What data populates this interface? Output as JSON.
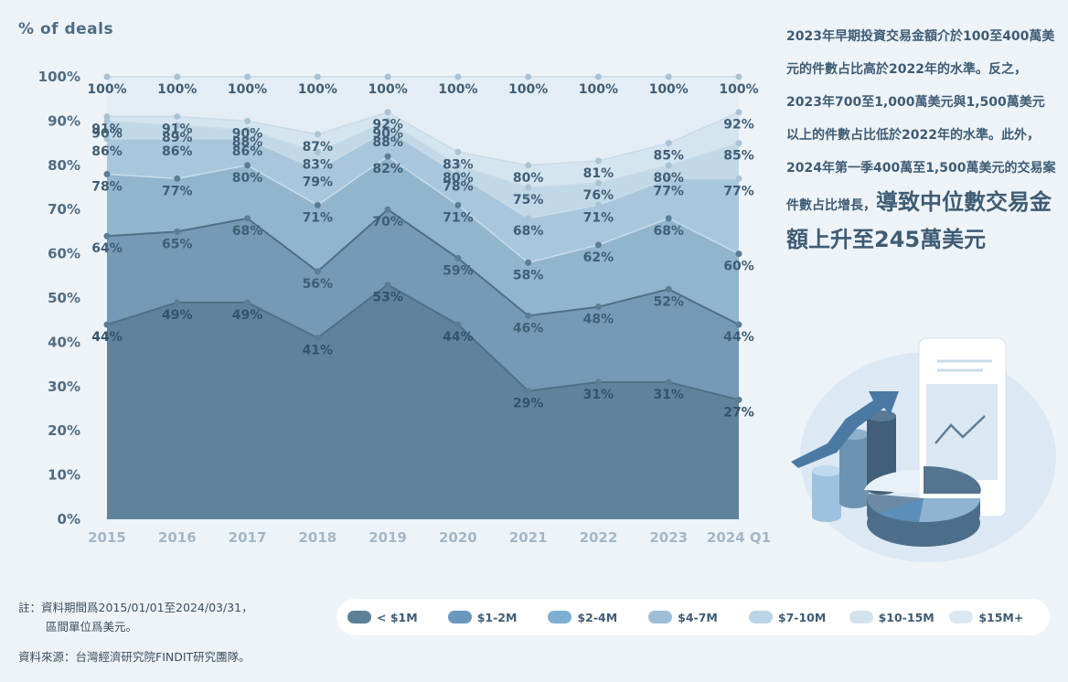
{
  "chart_data": {
    "type": "area",
    "ylabel": "% of deals",
    "ylim": [
      0,
      100
    ],
    "yticks": [
      "0%",
      "10%",
      "20%",
      "30%",
      "40%",
      "50%",
      "60%",
      "70%",
      "80%",
      "90%",
      "100%"
    ],
    "categories": [
      "2015",
      "2016",
      "2017",
      "2018",
      "2019",
      "2020",
      "2021",
      "2022",
      "2023",
      "2024 Q1"
    ],
    "series": [
      {
        "name": "< $1M",
        "values": [
          44,
          49,
          49,
          41,
          53,
          44,
          29,
          31,
          31,
          27
        ],
        "color": "#5e7f98"
      },
      {
        "name": "$1-2M",
        "values": [
          64,
          65,
          68,
          56,
          70,
          59,
          46,
          48,
          52,
          44
        ],
        "color": "#7397b2"
      },
      {
        "name": "$2-4M",
        "values": [
          78,
          77,
          80,
          71,
          82,
          71,
          58,
          62,
          68,
          60
        ],
        "color": "#8eb2cb"
      },
      {
        "name": "$4-7M",
        "values": [
          86,
          86,
          86,
          79,
          88,
          78,
          68,
          71,
          77,
          77
        ],
        "color": "#a6c5da"
      },
      {
        "name": "$7-10M",
        "values": [
          90,
          89,
          88,
          83,
          90,
          80,
          75,
          76,
          80,
          85
        ],
        "color": "#bfd6e6"
      },
      {
        "name": "$10-15M",
        "values": [
          91,
          91,
          90,
          87,
          92,
          83,
          80,
          81,
          85,
          92
        ],
        "color": "#d3e3ee"
      },
      {
        "name": "$15M+",
        "values": [
          100,
          100,
          100,
          100,
          100,
          100,
          100,
          100,
          100,
          100
        ],
        "color": "#e2ecf3"
      }
    ],
    "point_labels": [
      [
        "44%",
        "49%",
        "49%",
        "41%",
        "53%",
        "44%",
        "29%",
        "31%",
        "31%",
        "27%"
      ],
      [
        "64%",
        "65%",
        "68%",
        "56%",
        "70%",
        "59%",
        "46%",
        "48%",
        "52%",
        "44%"
      ],
      [
        "78%",
        "77%",
        "80%",
        "71%",
        "82%",
        "71%",
        "58%",
        "62%",
        "68%",
        "60%"
      ],
      [
        "86%",
        "86%",
        "86%",
        "79%",
        "88%",
        "78%",
        "68%",
        "71%",
        "77%",
        "77%"
      ],
      [
        "90%",
        "89%",
        "88%",
        "83%",
        "90%",
        "80%",
        "75%",
        "76%",
        "80%",
        "85%"
      ],
      [
        "91%",
        "91%",
        "90%",
        "87%",
        "92%",
        "83%",
        "80%",
        "81%",
        "85%",
        "92%"
      ],
      [
        "100%",
        "100%",
        "100%",
        "100%",
        "100%",
        "100%",
        "100%",
        "100%",
        "100%",
        "100%"
      ]
    ],
    "legend_position": "bottom"
  },
  "side_text": {
    "body": "2023年早期投資交易金額介於100至400萬美元的件數占比高於2022年的水準。反之，2023年700至1,000萬美元與1,500萬美元以上的件數占比低於2022年的水準。此外，2024年第一季400萬至1,500萬美元的交易案件數占比增長，",
    "highlight": "導致中位數交易金額上升至245萬美元"
  },
  "note": {
    "line1": "註：資料期間爲2015/01/01至2024/03/31，",
    "line2": "區間單位爲美元。"
  },
  "source": "資料來源：台灣經濟研究院FINDIT研究團隊。",
  "legend": [
    {
      "label": "< $1M",
      "color": "#5e7f98"
    },
    {
      "label": "$1-2M",
      "color": "#6a98bd"
    },
    {
      "label": "$2-4M",
      "color": "#7eaed0"
    },
    {
      "label": "$4-7M",
      "color": "#9dbed6"
    },
    {
      "label": "$7-10M",
      "color": "#bad4e5"
    },
    {
      "label": "$10-15M",
      "color": "#d3e3ee"
    },
    {
      "label": "$15M+",
      "color": "#dce8f1"
    }
  ],
  "illustration_icons": [
    "growth-arrow-icon",
    "bar-cylinder-icon",
    "pie-chart-icon",
    "document-line-chart-icon"
  ]
}
